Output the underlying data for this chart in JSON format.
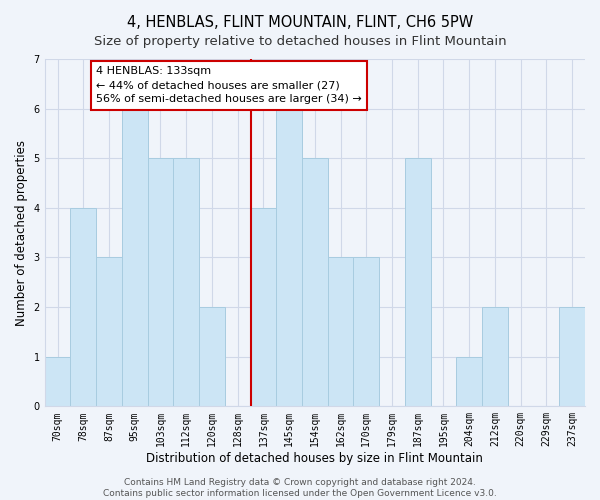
{
  "title": "4, HENBLAS, FLINT MOUNTAIN, FLINT, CH6 5PW",
  "subtitle": "Size of property relative to detached houses in Flint Mountain",
  "xlabel": "Distribution of detached houses by size in Flint Mountain",
  "ylabel": "Number of detached properties",
  "bar_labels": [
    "70sqm",
    "78sqm",
    "87sqm",
    "95sqm",
    "103sqm",
    "112sqm",
    "120sqm",
    "128sqm",
    "137sqm",
    "145sqm",
    "154sqm",
    "162sqm",
    "170sqm",
    "179sqm",
    "187sqm",
    "195sqm",
    "204sqm",
    "212sqm",
    "220sqm",
    "229sqm",
    "237sqm"
  ],
  "bar_values": [
    1,
    4,
    3,
    6,
    5,
    5,
    2,
    0,
    4,
    6,
    5,
    3,
    3,
    0,
    5,
    0,
    1,
    2,
    0,
    0,
    2
  ],
  "bar_color": "#cce5f5",
  "bar_edge_color": "#a8cce0",
  "vline_index": 8,
  "vline_color": "#cc0000",
  "annotation_title": "4 HENBLAS: 133sqm",
  "annotation_line1": "← 44% of detached houses are smaller (27)",
  "annotation_line2": "56% of semi-detached houses are larger (34) →",
  "annotation_box_facecolor": "#ffffff",
  "annotation_box_edgecolor": "#cc0000",
  "ylim": [
    0,
    7
  ],
  "yticks": [
    0,
    1,
    2,
    3,
    4,
    5,
    6,
    7
  ],
  "footer_line1": "Contains HM Land Registry data © Crown copyright and database right 2024.",
  "footer_line2": "Contains public sector information licensed under the Open Government Licence v3.0.",
  "background_color": "#f0f4fa",
  "grid_color": "#d0d8e8",
  "title_fontsize": 10.5,
  "subtitle_fontsize": 9.5,
  "axis_label_fontsize": 8.5,
  "tick_fontsize": 7,
  "annotation_fontsize": 8,
  "footer_fontsize": 6.5
}
